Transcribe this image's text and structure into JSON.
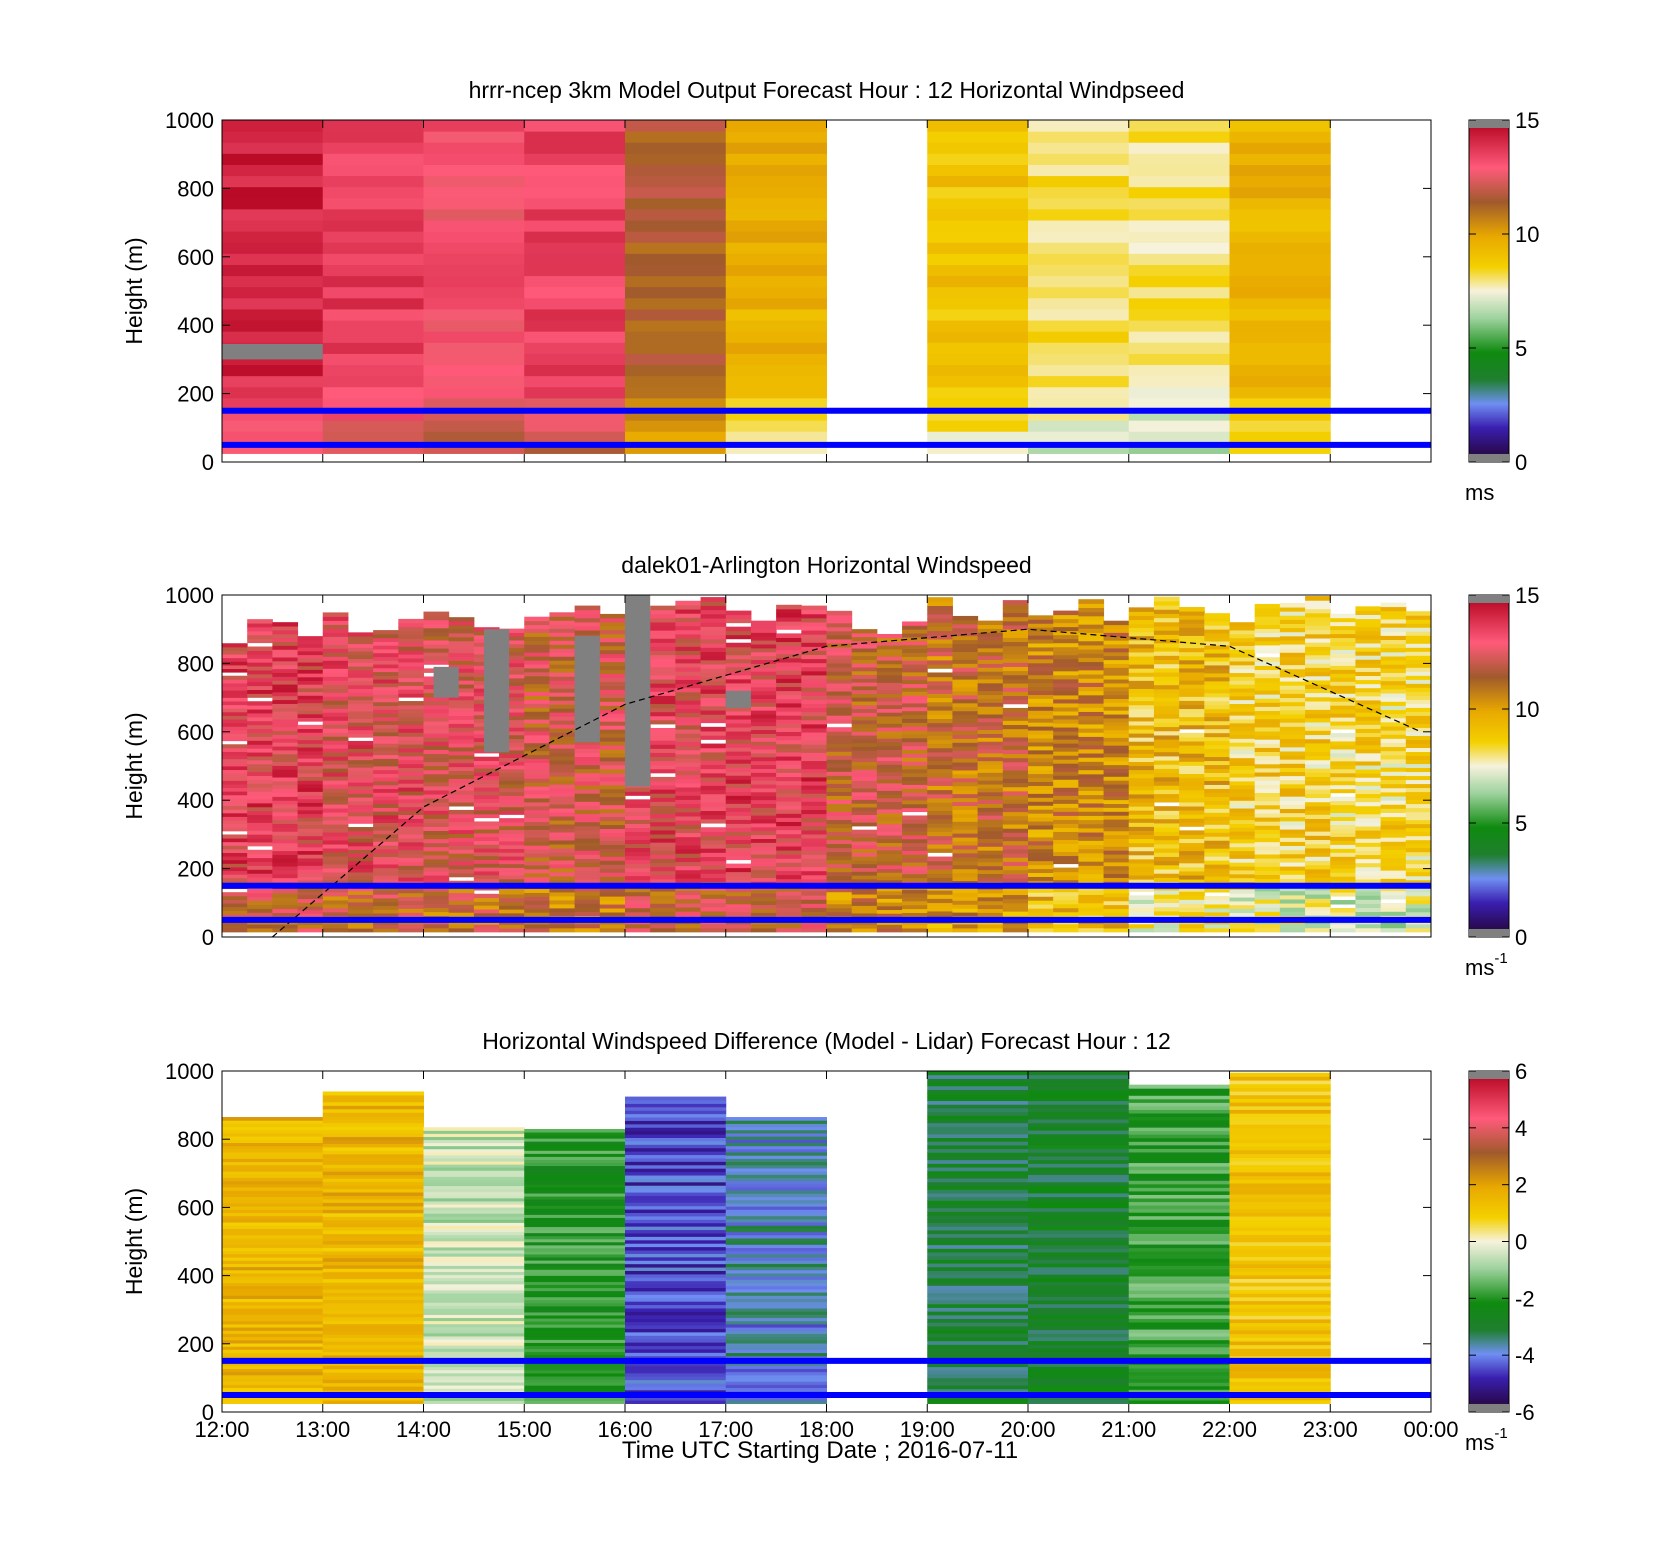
{
  "figure": {
    "xlabel": "Time UTC  Starting Date ; 2016-07-11",
    "xticks": [
      "12:00",
      "13:00",
      "14:00",
      "15:00",
      "16:00",
      "17:00",
      "18:00",
      "19:00",
      "20:00",
      "21:00",
      "22:00",
      "23:00",
      "00:00"
    ]
  },
  "chart_data": [
    {
      "type": "heatmap",
      "title": "hrrr-ncep 3km Model Output   Forecast Hour : 12 Horizontal Windpseed",
      "ylabel": "Height (m)",
      "ylim": [
        0,
        1000
      ],
      "yticks": [
        "0",
        "200",
        "400",
        "600",
        "800",
        "1000"
      ],
      "xlim_hours_utc": [
        12,
        24
      ],
      "colorbar": {
        "unit": "ms",
        "unit_sup": "",
        "ticks": [
          "0",
          "5",
          "10",
          "15"
        ],
        "range": [
          0,
          15
        ]
      },
      "reference_lines_height_m": [
        50,
        150
      ],
      "time_bins_hour": [
        12,
        13,
        14,
        15,
        16,
        17,
        18,
        19,
        20,
        21,
        22,
        23
      ],
      "typical_speed_by_hour": [
        14.2,
        13.6,
        13.0,
        13.5,
        11.5,
        9.5,
        null,
        9.0,
        8.2,
        8.0,
        9.5,
        null
      ],
      "data_top_m": [
        1000,
        1000,
        1000,
        1000,
        1000,
        1000,
        null,
        1000,
        1000,
        1000,
        1000,
        null
      ],
      "data_bottom_m": [
        25,
        25,
        25,
        25,
        25,
        25,
        null,
        25,
        25,
        25,
        25,
        null
      ],
      "missing_patches": [
        {
          "hour": 12,
          "from_m": 300,
          "to_m": 345
        }
      ]
    },
    {
      "type": "heatmap",
      "title": "dalek01-Arlington  Horizontal Windspeed",
      "ylabel": "Height (m)",
      "ylim": [
        0,
        1000
      ],
      "yticks": [
        "0",
        "200",
        "400",
        "600",
        "800",
        "1000"
      ],
      "xlim_hours_utc": [
        12,
        24
      ],
      "colorbar": {
        "unit": "ms",
        "unit_sup": "-1",
        "ticks": [
          "0",
          "5",
          "10",
          "15"
        ],
        "range": [
          0,
          15
        ]
      },
      "reference_lines_height_m": [
        50,
        150
      ],
      "boundary_layer_curve": {
        "style": "dashed",
        "hours": [
          12.5,
          14,
          16,
          18,
          20,
          22,
          23.9
        ],
        "height_m": [
          0,
          380,
          680,
          850,
          900,
          850,
          600
        ]
      },
      "typical_speed_by_hour": [
        13.2,
        12.8,
        12.5,
        12.0,
        13.0,
        13.2,
        11.8,
        11.2,
        10.5,
        9.2,
        8.6,
        8.4
      ],
      "data_top_m": [
        930,
        960,
        970,
        990,
        1000,
        980,
        960,
        1000,
        1000,
        1000,
        1000,
        1000
      ],
      "missing_patches": [
        {
          "hour": 14.1,
          "from_m": 700,
          "to_m": 790
        },
        {
          "hour": 14.6,
          "from_m": 540,
          "to_m": 900
        },
        {
          "hour": 15.5,
          "from_m": 570,
          "to_m": 880
        },
        {
          "hour": 16.0,
          "from_m": 440,
          "to_m": 1000
        },
        {
          "hour": 17.0,
          "from_m": 670,
          "to_m": 720
        }
      ]
    },
    {
      "type": "heatmap",
      "title": "Horizontal Windspeed Difference (Model - Lidar) Forecast Hour : 12",
      "ylabel": "Height (m)",
      "ylim": [
        0,
        1000
      ],
      "yticks": [
        "0",
        "200",
        "400",
        "600",
        "800",
        "1000"
      ],
      "xlim_hours_utc": [
        12,
        24
      ],
      "colorbar": {
        "unit": "ms",
        "unit_sup": "-1",
        "ticks": [
          "-6",
          "-4",
          "-2",
          "0",
          "2",
          "4",
          "6"
        ],
        "range": [
          -6,
          6
        ]
      },
      "reference_lines_height_m": [
        50,
        150
      ],
      "time_bins_hour": [
        12,
        13,
        14,
        15,
        16,
        17,
        18,
        19,
        20,
        21,
        22,
        23
      ],
      "typical_difference_by_hour": [
        1.5,
        1.5,
        -0.5,
        -2.0,
        -4.5,
        -3.8,
        null,
        -3.0,
        -2.8,
        -1.8,
        1.2,
        null
      ],
      "data_top_m": [
        865,
        940,
        835,
        830,
        925,
        865,
        null,
        1000,
        1000,
        960,
        995,
        null
      ],
      "data_bottom_m": [
        25,
        25,
        25,
        25,
        25,
        25,
        null,
        25,
        25,
        25,
        25,
        null
      ]
    }
  ]
}
